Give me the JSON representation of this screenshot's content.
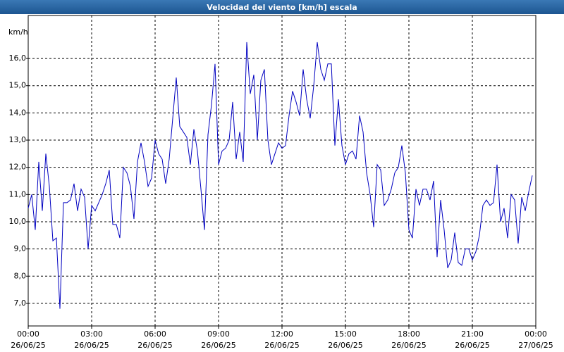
{
  "chart_data": {
    "type": "line",
    "title": "Velocidad del viento [km/h] escala",
    "y_label": "km/h",
    "x": [
      0,
      10,
      20,
      30,
      40,
      50,
      60,
      70,
      80,
      90,
      100,
      110,
      120,
      130,
      140,
      150,
      160,
      170,
      180,
      190,
      200,
      210,
      220,
      230,
      240,
      250,
      260,
      270,
      280,
      290,
      300,
      310,
      320,
      330,
      340,
      350,
      360,
      370,
      380,
      390,
      400,
      410,
      420,
      430,
      440,
      450,
      460,
      470,
      480,
      490,
      500,
      510,
      520,
      530,
      540,
      550,
      560,
      570,
      580,
      590,
      600,
      610,
      620,
      630,
      640,
      650,
      660,
      670,
      680,
      690,
      700,
      710,
      720,
      730,
      740,
      750,
      760,
      770,
      780,
      790,
      800,
      810,
      820,
      830,
      840,
      850,
      860,
      870,
      880,
      890,
      900,
      910,
      920,
      930,
      940,
      950,
      960,
      970,
      980,
      990,
      1000,
      1010,
      1020,
      1030,
      1040,
      1050,
      1060,
      1070,
      1080,
      1090,
      1100,
      1110,
      1120,
      1130,
      1140,
      1150,
      1160,
      1170,
      1180,
      1190,
      1200,
      1210,
      1220,
      1230,
      1240,
      1250,
      1260,
      1270,
      1280,
      1290,
      1300,
      1310,
      1320,
      1330,
      1340,
      1350,
      1360,
      1370,
      1380,
      1390,
      1400,
      1410,
      1420,
      1430
    ],
    "series": [
      {
        "name": "Velocidad del viento",
        "color": "#0000c0",
        "values": [
          10.5,
          11.0,
          9.7,
          12.2,
          10.4,
          12.5,
          11.3,
          9.3,
          9.4,
          6.8,
          10.7,
          10.7,
          10.8,
          11.4,
          10.4,
          11.2,
          10.9,
          9.0,
          10.6,
          10.4,
          10.7,
          11.0,
          11.4,
          11.9,
          9.9,
          9.9,
          9.4,
          12.0,
          11.8,
          11.3,
          10.1,
          12.2,
          12.9,
          12.2,
          11.3,
          11.6,
          13.0,
          12.5,
          12.3,
          11.4,
          12.3,
          13.8,
          15.3,
          13.5,
          13.3,
          13.1,
          12.1,
          13.4,
          12.6,
          11.2,
          9.7,
          13.2,
          14.3,
          15.8,
          12.1,
          12.6,
          12.7,
          13.0,
          14.4,
          12.3,
          13.3,
          12.2,
          16.6,
          14.7,
          15.4,
          13.0,
          15.2,
          15.6,
          13.0,
          12.1,
          12.5,
          12.9,
          12.7,
          12.8,
          13.9,
          14.8,
          14.4,
          13.9,
          15.6,
          14.5,
          13.8,
          15.0,
          16.6,
          15.6,
          15.2,
          15.8,
          15.8,
          12.8,
          14.5,
          12.8,
          12.1,
          12.5,
          12.6,
          12.3,
          13.9,
          13.3,
          11.8,
          11.0,
          9.8,
          12.1,
          11.9,
          10.6,
          10.8,
          11.2,
          11.8,
          12.0,
          12.8,
          11.8,
          9.7,
          9.4,
          11.2,
          10.6,
          11.2,
          11.2,
          10.8,
          11.5,
          8.7,
          10.8,
          9.7,
          8.3,
          8.6,
          9.6,
          8.5,
          8.4,
          9.0,
          9.0,
          8.6,
          8.9,
          9.5,
          10.6,
          10.8,
          10.6,
          10.7,
          12.1,
          10.0,
          10.5,
          9.4,
          11.0,
          10.8,
          9.2,
          10.9,
          10.4,
          11.1,
          11.7
        ]
      }
    ],
    "xlim": [
      0,
      1440
    ],
    "xticks": [
      {
        "value": 0,
        "label": "00:00 26/06/25"
      },
      {
        "value": 180,
        "label": "03:00 26/06/25"
      },
      {
        "value": 360,
        "label": "06:00 26/06/25"
      },
      {
        "value": 540,
        "label": "09:00 26/06/25"
      },
      {
        "value": 720,
        "label": "12:00 26/06/25"
      },
      {
        "value": 900,
        "label": "15:00 26/06/25"
      },
      {
        "value": 1080,
        "label": "18:00 26/06/25"
      },
      {
        "value": 1260,
        "label": "21:00 26/06/25"
      },
      {
        "value": 1440,
        "label": "00:00 27/06/25"
      }
    ],
    "ylim": [
      6.17,
      17.58
    ],
    "yticks": [
      {
        "value": 7,
        "label": "7,0"
      },
      {
        "value": 8,
        "label": "8,0"
      },
      {
        "value": 9,
        "label": "9,0"
      },
      {
        "value": 10,
        "label": "10,0"
      },
      {
        "value": 11,
        "label": "11,0"
      },
      {
        "value": 12,
        "label": "12,0"
      },
      {
        "value": 13,
        "label": "13,0"
      },
      {
        "value": 14,
        "label": "14,0"
      },
      {
        "value": 15,
        "label": "15,0"
      },
      {
        "value": 16,
        "label": "16,0"
      }
    ],
    "grid": true
  }
}
